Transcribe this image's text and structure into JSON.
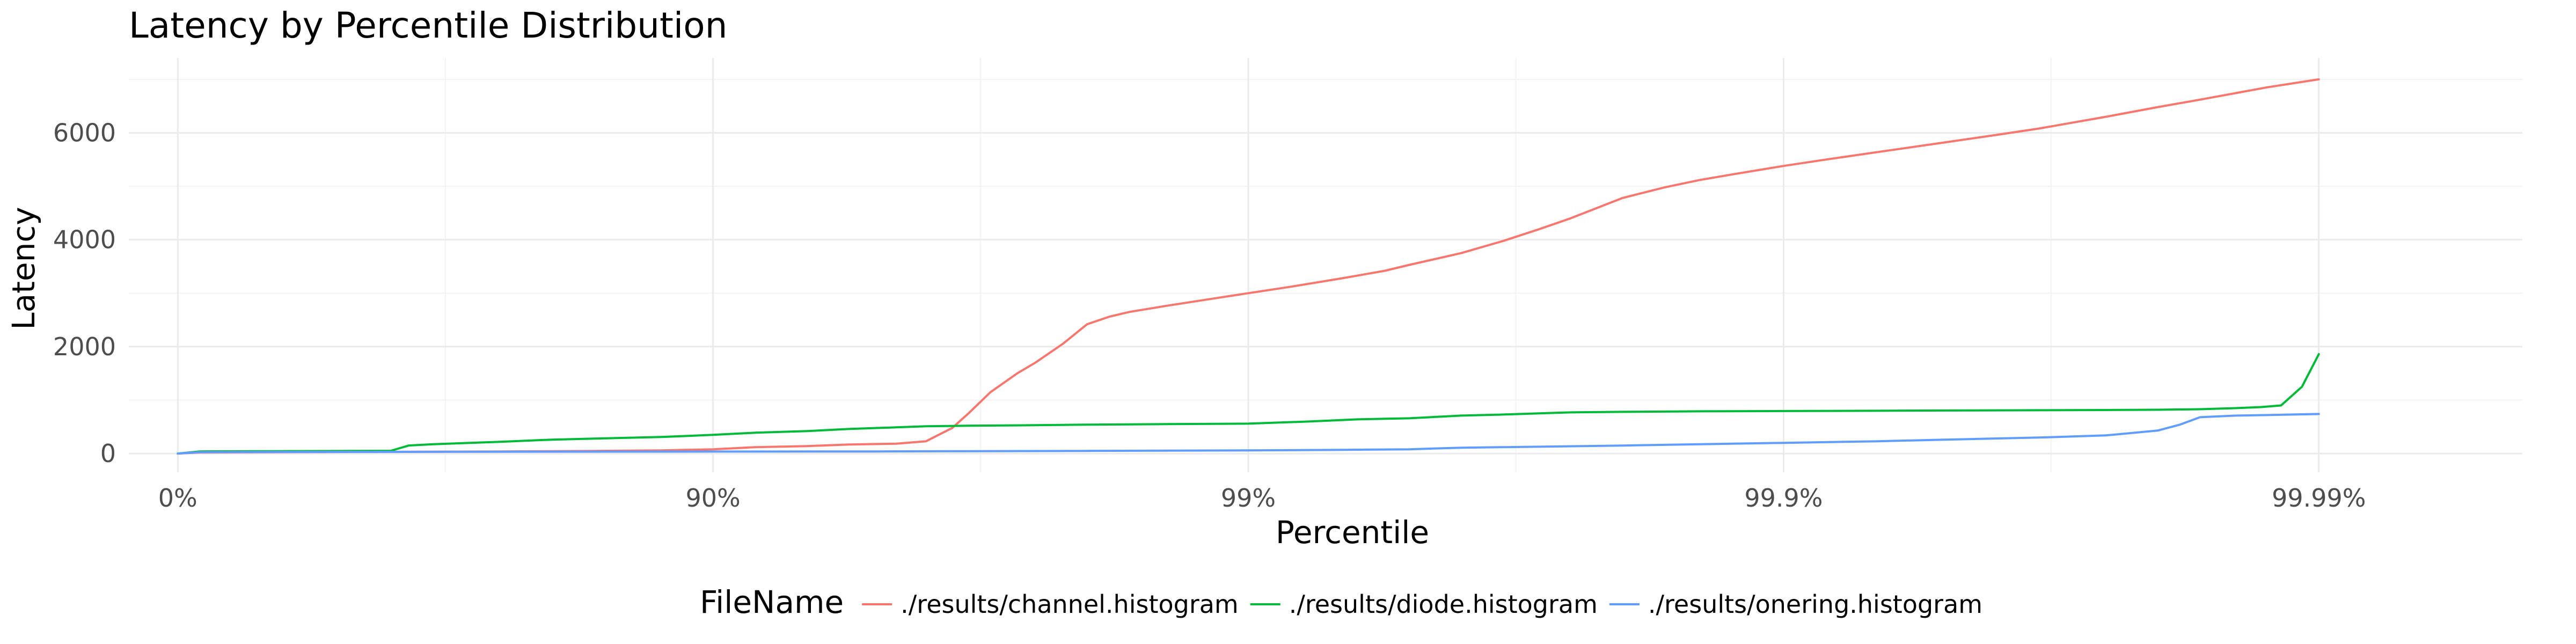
{
  "chart_data": {
    "type": "line",
    "title": "Latency by Percentile Distribution",
    "xlabel": "Percentile",
    "ylabel": "Latency",
    "x_scale": "inverse-log (1/(1-p)); tick positions 1, 10, 100, 1000, 10000",
    "x_ticks": [
      {
        "value": 1,
        "label": "0%"
      },
      {
        "value": 10,
        "label": "90%"
      },
      {
        "value": 100,
        "label": "99%"
      },
      {
        "value": 1000,
        "label": "99.9%"
      },
      {
        "value": 10000,
        "label": "99.99%"
      }
    ],
    "x_minor_ticks": [
      3.162,
      31.62,
      316.2,
      3162
    ],
    "xlim": [
      0.81,
      24000
    ],
    "ylim": [
      -350,
      7400
    ],
    "y_ticks": [
      0,
      2000,
      4000,
      6000
    ],
    "y_minor_ticks": [
      1000,
      3000,
      5000,
      7000
    ],
    "grid": true,
    "legend_position": "bottom",
    "legend_title": "FileName",
    "series": [
      {
        "name": "./results/channel.histogram",
        "color": "#f8766d",
        "x": [
          1,
          1.1,
          1.5,
          2,
          3,
          4,
          5,
          6,
          8,
          10,
          12,
          15,
          18,
          22,
          25,
          28,
          30,
          33,
          37,
          40,
          45,
          50,
          55,
          60,
          70,
          80,
          90,
          100,
          120,
          150,
          180,
          200,
          250,
          300,
          350,
          400,
          500,
          600,
          700,
          800,
          1000,
          1200,
          1500,
          2000,
          2500,
          3000,
          4000,
          5000,
          6000,
          8000,
          10000
        ],
        "y": [
          0,
          20,
          25,
          30,
          35,
          40,
          45,
          50,
          60,
          80,
          120,
          140,
          170,
          185,
          230,
          480,
          750,
          1150,
          1500,
          1700,
          2050,
          2420,
          2560,
          2650,
          2760,
          2850,
          2930,
          3000,
          3120,
          3280,
          3420,
          3530,
          3750,
          3980,
          4200,
          4400,
          4780,
          4980,
          5120,
          5220,
          5380,
          5500,
          5640,
          5820,
          5960,
          6080,
          6300,
          6480,
          6620,
          6850,
          7000
        ]
      },
      {
        "name": "./results/diode.histogram",
        "color": "#00ba38",
        "x": [
          1,
          1.1,
          1.5,
          2,
          2.5,
          2.7,
          3,
          4,
          5,
          6,
          8,
          10,
          12,
          15,
          18,
          22,
          25,
          30,
          40,
          50,
          70,
          100,
          130,
          160,
          200,
          250,
          300,
          400,
          500,
          700,
          1000,
          1500,
          2000,
          3000,
          4000,
          5000,
          6000,
          7000,
          7800,
          8500,
          9300,
          10000
        ],
        "y": [
          0,
          40,
          45,
          48,
          52,
          150,
          175,
          220,
          260,
          280,
          310,
          350,
          390,
          420,
          460,
          490,
          510,
          520,
          530,
          540,
          550,
          560,
          600,
          640,
          660,
          710,
          730,
          770,
          780,
          790,
          795,
          800,
          805,
          810,
          815,
          820,
          830,
          850,
          870,
          900,
          1250,
          1860
        ]
      },
      {
        "name": "./results/onering.histogram",
        "color": "#619cff",
        "x": [
          1,
          1.1,
          1.5,
          2,
          3,
          5,
          10,
          20,
          30,
          50,
          100,
          150,
          200,
          250,
          300,
          500,
          800,
          1000,
          1500,
          2000,
          3000,
          4000,
          5000,
          5500,
          6000,
          7000,
          8000,
          10000
        ],
        "y": [
          0,
          25,
          28,
          30,
          32,
          35,
          38,
          40,
          45,
          50,
          60,
          70,
          80,
          110,
          120,
          150,
          185,
          200,
          230,
          260,
          300,
          340,
          430,
          540,
          680,
          710,
          720,
          740
        ]
      }
    ]
  }
}
